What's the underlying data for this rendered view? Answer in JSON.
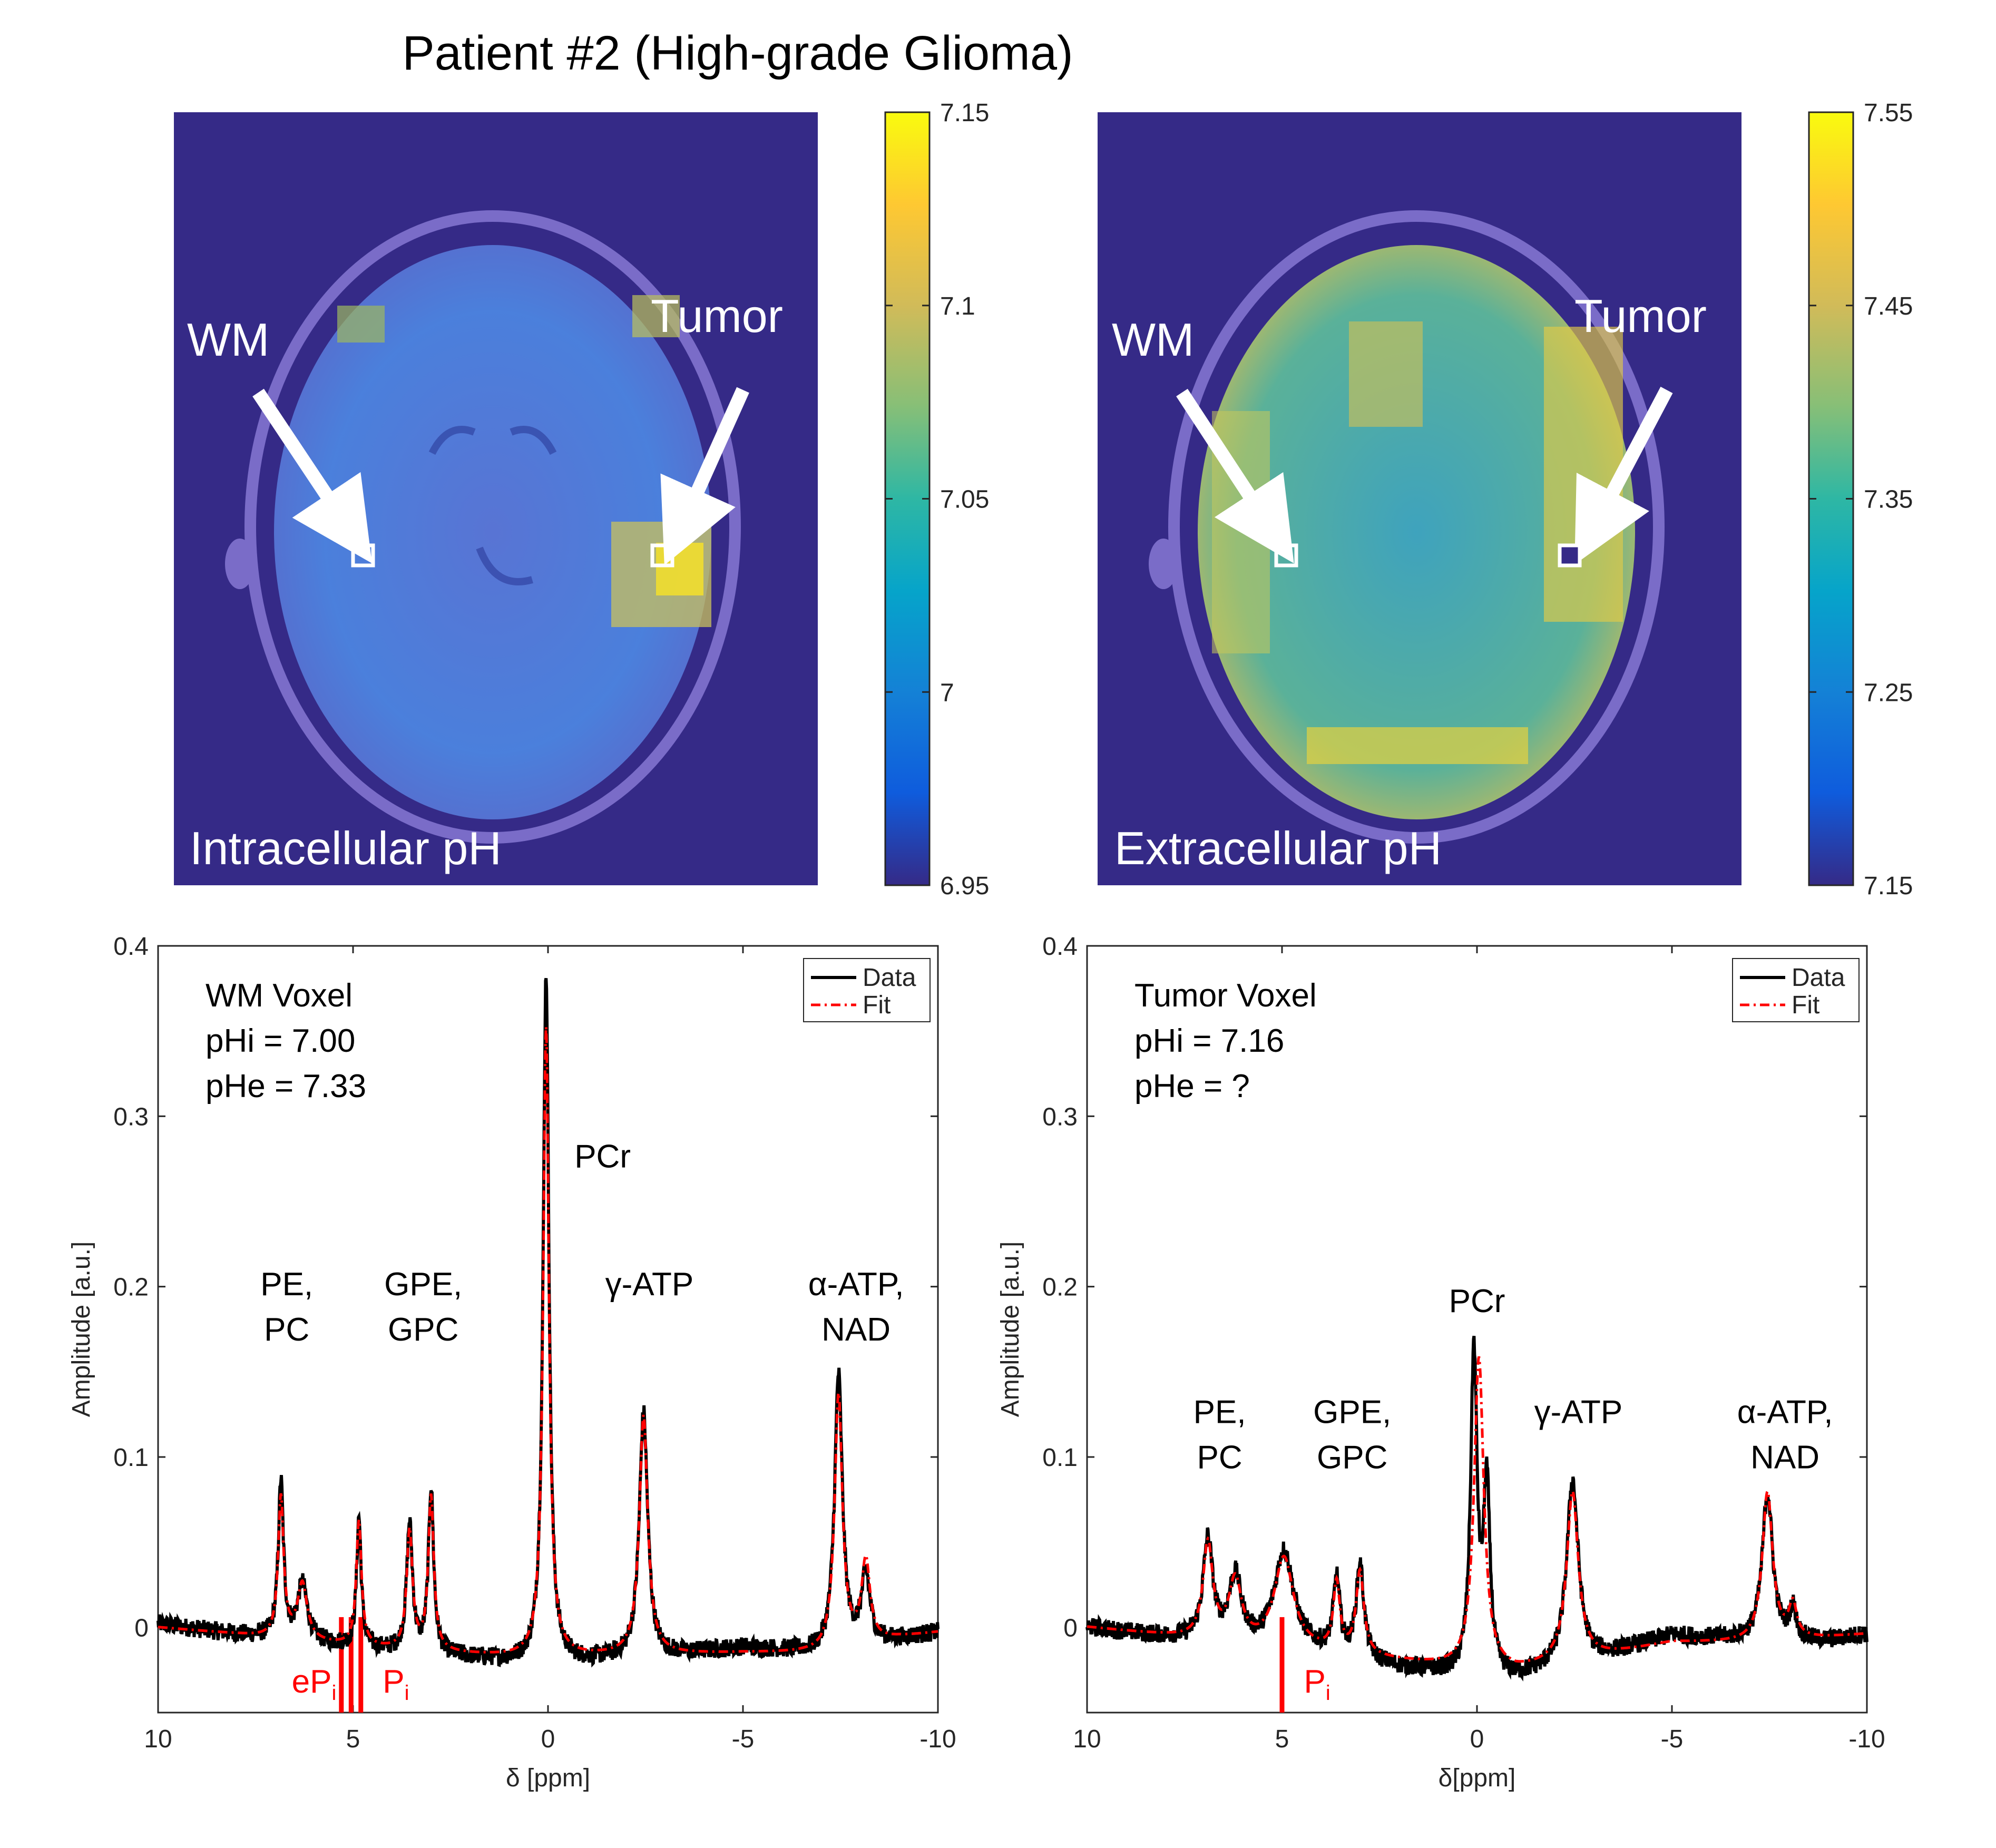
{
  "title": "Patient #2 (High-grade Glioma)",
  "panels": {
    "left_map": {
      "label": "Intracellular pH",
      "wm_label": "WM",
      "tumor_label": "Tumor",
      "colorbar": {
        "ticks": [
          "7.15",
          "7.1",
          "7.05",
          "7",
          "6.95"
        ],
        "min": 6.95,
        "max": 7.15
      }
    },
    "right_map": {
      "label": "Extracellular pH",
      "wm_label": "WM",
      "tumor_label": "Tumor",
      "colorbar": {
        "ticks": [
          "7.55",
          "7.45",
          "7.35",
          "7.25",
          "7.15"
        ],
        "min": 7.15,
        "max": 7.55
      }
    }
  },
  "legend": {
    "data": "Data",
    "fit": "Fit"
  },
  "colors": {
    "data": "#000000",
    "fit": "#ff0000",
    "map_bg": "#352a87",
    "marker": "#ff0000"
  },
  "chart_data": [
    {
      "type": "line",
      "title": "",
      "xlabel": "δ [ppm]",
      "ylabel": "Amplitude [a.u.]",
      "xlim": [
        10,
        -10
      ],
      "ylim": [
        -0.05,
        0.4
      ],
      "xticks": [
        "10",
        "5",
        "0",
        "-5",
        "-10"
      ],
      "yticks": [
        "0.4",
        "0.3",
        "0.2",
        "0.1",
        "0"
      ],
      "info": [
        "WM Voxel",
        "pHi = 7.00",
        "pHe = 7.33"
      ],
      "peak_labels": [
        {
          "text": [
            "PE,",
            "PC"
          ],
          "x": 6.7,
          "y": 0.195
        },
        {
          "text": [
            "GPE,",
            "GPC"
          ],
          "x": 3.2,
          "y": 0.195
        },
        {
          "text": [
            "PCr"
          ],
          "x": -1.4,
          "y": 0.27
        },
        {
          "text": [
            "γ-ATP"
          ],
          "x": -2.6,
          "y": 0.195
        },
        {
          "text": [
            "α-ATP,",
            "NAD"
          ],
          "x": -7.9,
          "y": 0.195
        }
      ],
      "markers": [
        {
          "name": "ePi",
          "x": 5.3
        },
        {
          "name": "ePi",
          "x": 5.05
        },
        {
          "name": "Pi",
          "x": 4.8
        }
      ],
      "marker_labels": [
        {
          "text": "eP",
          "sub": "i",
          "x": 6.0
        },
        {
          "text": "P",
          "sub": "i",
          "x": 3.9
        }
      ],
      "series": [
        {
          "name": "Data",
          "baseline": [
            [
              10,
              0.002
            ],
            [
              8,
              -0.004
            ],
            [
              6,
              -0.009
            ],
            [
              4,
              -0.014
            ],
            [
              2,
              -0.018
            ],
            [
              0.5,
              -0.021
            ],
            [
              -1,
              -0.02
            ],
            [
              -3,
              -0.017
            ],
            [
              -5,
              -0.012
            ],
            [
              -7,
              -0.015
            ],
            [
              -9,
              -0.007
            ],
            [
              -10,
              -0.003
            ]
          ],
          "peaks": [
            [
              6.85,
              0.085,
              0.08
            ],
            [
              6.3,
              0.025,
              0.15
            ],
            [
              4.85,
              0.064,
              0.07
            ],
            [
              3.55,
              0.06,
              0.09
            ],
            [
              3.0,
              0.081,
              0.08
            ],
            [
              0.05,
              0.384,
              0.09
            ],
            [
              -2.45,
              0.126,
              0.13
            ],
            [
              -7.45,
              0.148,
              0.12
            ],
            [
              -8.15,
              0.03,
              0.13
            ]
          ]
        },
        {
          "name": "Fit",
          "baseline": [
            [
              10,
              0.0
            ],
            [
              8,
              -0.004
            ],
            [
              6,
              -0.009
            ],
            [
              4,
              -0.013
            ],
            [
              2,
              -0.016
            ],
            [
              0.5,
              -0.018
            ],
            [
              -1,
              -0.017
            ],
            [
              -3,
              -0.016
            ],
            [
              -5,
              -0.015
            ],
            [
              -7,
              -0.015
            ],
            [
              -9,
              -0.006
            ],
            [
              -10,
              -0.003
            ]
          ],
          "peaks": [
            [
              6.85,
              0.076,
              0.085
            ],
            [
              6.3,
              0.025,
              0.15
            ],
            [
              4.85,
              0.062,
              0.08
            ],
            [
              3.55,
              0.056,
              0.09
            ],
            [
              3.0,
              0.076,
              0.085
            ],
            [
              0.05,
              0.352,
              0.09
            ],
            [
              -2.45,
              0.124,
              0.13
            ],
            [
              -7.45,
              0.136,
              0.12
            ],
            [
              -8.15,
              0.038,
              0.13
            ]
          ]
        }
      ]
    },
    {
      "type": "line",
      "title": "",
      "xlabel": "δ[ppm]",
      "ylabel": "Amplitude [a.u.]",
      "xlim": [
        10,
        -10
      ],
      "ylim": [
        -0.05,
        0.4
      ],
      "xticks": [
        "10",
        "5",
        "0",
        "-5",
        "-10"
      ],
      "yticks": [
        "0.4",
        "0.3",
        "0.2",
        "0.1",
        "0"
      ],
      "info": [
        "Tumor Voxel",
        "pHi = 7.16",
        "pHe = ?"
      ],
      "peak_labels": [
        {
          "text": [
            "PCr"
          ],
          "x": 0.0,
          "y": 0.185
        },
        {
          "text": [
            "PE,",
            "PC"
          ],
          "x": 6.6,
          "y": 0.12
        },
        {
          "text": [
            "GPE,",
            "GPC"
          ],
          "x": 3.2,
          "y": 0.12
        },
        {
          "text": [
            "γ-ATP"
          ],
          "x": -2.6,
          "y": 0.12
        },
        {
          "text": [
            "α-ATP,",
            "NAD"
          ],
          "x": -7.9,
          "y": 0.12
        }
      ],
      "markers": [
        {
          "name": "Pi",
          "x": 5.0
        }
      ],
      "marker_labels": [
        {
          "text": "P",
          "sub": "i",
          "x": 4.1
        }
      ],
      "series": [
        {
          "name": "Data",
          "baseline": [
            [
              10,
              0.0
            ],
            [
              8,
              -0.006
            ],
            [
              6,
              -0.012
            ],
            [
              4,
              -0.015
            ],
            [
              2,
              -0.024
            ],
            [
              0.5,
              -0.028
            ],
            [
              -1,
              -0.03
            ],
            [
              -3,
              -0.019
            ],
            [
              -5,
              -0.005
            ],
            [
              -7,
              -0.008
            ],
            [
              -9,
              -0.008
            ],
            [
              -10,
              -0.004
            ]
          ],
          "peaks": [
            [
              6.9,
              0.05,
              0.15
            ],
            [
              6.2,
              0.028,
              0.2
            ],
            [
              4.95,
              0.044,
              0.3
            ],
            [
              3.6,
              0.026,
              0.1
            ],
            [
              3.0,
              0.035,
              0.12
            ],
            [
              0.08,
              0.159,
              0.1
            ],
            [
              -0.25,
              0.08,
              0.1
            ],
            [
              -2.45,
              0.086,
              0.18
            ],
            [
              -7.45,
              0.079,
              0.16
            ],
            [
              -8.1,
              0.01,
              0.1
            ]
          ]
        },
        {
          "name": "Fit",
          "baseline": [
            [
              10,
              0.0
            ],
            [
              8,
              -0.005
            ],
            [
              6,
              -0.011
            ],
            [
              4,
              -0.015
            ],
            [
              2,
              -0.02
            ],
            [
              0.5,
              -0.024
            ],
            [
              -1,
              -0.026
            ],
            [
              -3,
              -0.018
            ],
            [
              -5,
              -0.009
            ],
            [
              -7,
              -0.009
            ],
            [
              -9,
              -0.006
            ],
            [
              -10,
              -0.004
            ]
          ],
          "peaks": [
            [
              6.9,
              0.048,
              0.15
            ],
            [
              6.2,
              0.026,
              0.2
            ],
            [
              4.95,
              0.04,
              0.3
            ],
            [
              3.6,
              0.024,
              0.1
            ],
            [
              3.0,
              0.031,
              0.12
            ],
            [
              -0.05,
              0.158,
              0.15
            ],
            [
              -2.45,
              0.079,
              0.18
            ],
            [
              -7.45,
              0.079,
              0.16
            ],
            [
              -8.1,
              0.012,
              0.12
            ]
          ]
        }
      ]
    }
  ]
}
